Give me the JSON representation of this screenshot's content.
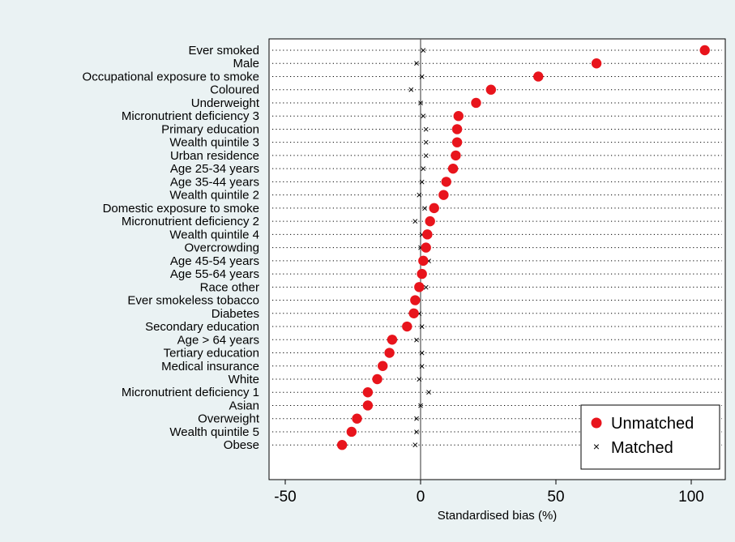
{
  "chart_data": {
    "type": "scatter",
    "title": "",
    "xlabel": "Standardised bias (%)",
    "ylabel": "",
    "xlim": [
      -55,
      110
    ],
    "xticks": [
      -50,
      0,
      50,
      100
    ],
    "grid": true,
    "legend_position": "bottom-right",
    "categories": [
      "Ever smoked",
      "Male",
      "Occupational exposure to smoke",
      "Coloured",
      "Underweight",
      "Micronutrient deficiency 3",
      "Primary education",
      "Wealth quintile 3",
      "Urban residence",
      "Age 25-34 years",
      "Age 35-44 years",
      "Wealth quintile 2",
      "Domestic exposure to smoke",
      "Micronutrient deficiency 2",
      "Wealth quintile 4",
      "Overcrowding",
      "Age 45-54 years",
      "Age 55-64 years",
      "Race other",
      "Ever smokeless tobacco",
      "Diabetes",
      "Secondary education",
      "Age > 64 years",
      "Tertiary education",
      "Medical insurance",
      "White",
      "Micronutrient deficiency 1",
      "Asian",
      "Overweight",
      "Wealth quintile 5",
      "Obese"
    ],
    "series": [
      {
        "name": "Unmatched",
        "marker": "circle",
        "color": "#e8141c",
        "values": [
          105,
          65,
          43.5,
          26,
          20.5,
          14,
          13.5,
          13.5,
          13,
          12,
          9.5,
          8.5,
          5,
          3.5,
          2.5,
          2,
          1,
          0.5,
          -0.5,
          -2,
          -2.5,
          -5,
          -10.5,
          -11.5,
          -14,
          -16,
          -19.5,
          -19.5,
          -23.5,
          -25.5,
          -29
        ]
      },
      {
        "name": "Matched",
        "marker": "x",
        "color": "#000000",
        "values": [
          1,
          -1.5,
          0.5,
          -3.5,
          0,
          1,
          2,
          2,
          2,
          1,
          0.5,
          -0.5,
          1.5,
          -2,
          0.5,
          0,
          3,
          0.5,
          2,
          -1.5,
          -0.5,
          0.5,
          -1.5,
          0.5,
          0.5,
          -0.5,
          3,
          0,
          -1.5,
          -1.5,
          -2
        ]
      }
    ]
  }
}
